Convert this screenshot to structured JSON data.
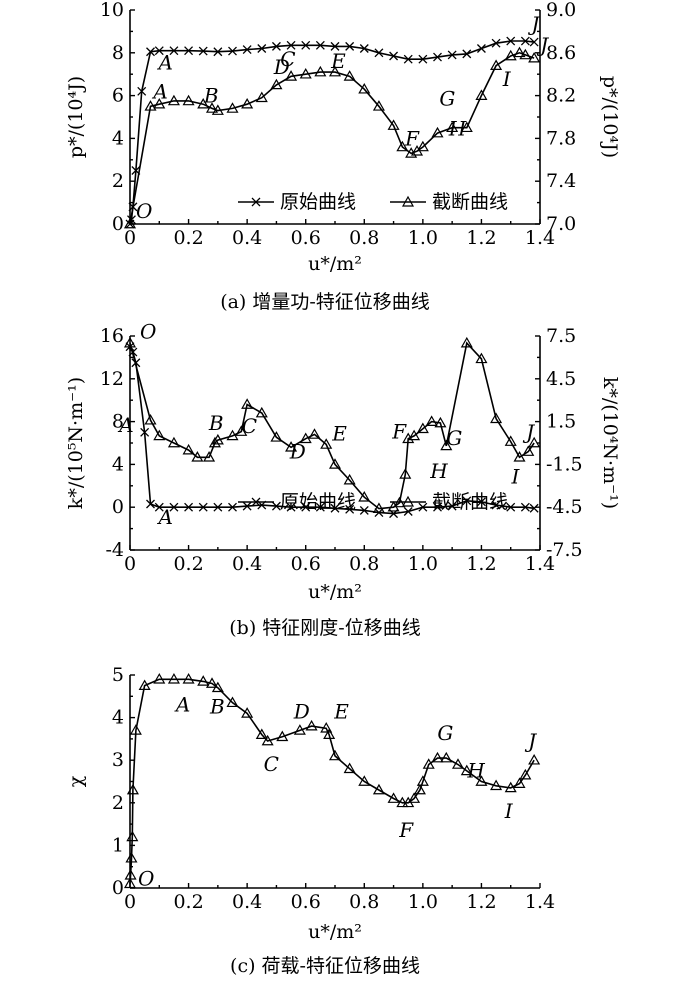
{
  "chart_data": [
    {
      "id": "a",
      "type": "line",
      "title": "",
      "caption": "(a) 增量功-特征位移曲线",
      "xlabel": "u*/m²",
      "ylabel_left": "p*/(10⁴J)",
      "ylabel_right": "p*/(10⁴J)",
      "xlim": [
        0,
        1.4
      ],
      "ylim_left": [
        0,
        10
      ],
      "ylim_right": [
        7.0,
        9.0
      ],
      "xticks": [
        "0",
        "0.2",
        "0.4",
        "0.6",
        "0.8",
        "1.0",
        "1.2",
        "1.4"
      ],
      "yticks_left": [
        "0",
        "2",
        "4",
        "6",
        "8",
        "10"
      ],
      "yticks_right": [
        "7.0",
        "7.4",
        "7.8",
        "8.2",
        "8.6",
        "9.0"
      ],
      "legend": [
        "原始曲线",
        "截断曲线"
      ],
      "legend_placement": "bottom-right",
      "series": [
        {
          "name": "原始曲线",
          "axis": "left",
          "marker": "x",
          "points": [
            [
              0,
              0
            ],
            [
              0.005,
              0.2
            ],
            [
              0.01,
              0.8
            ],
            [
              0.02,
              2.5
            ],
            [
              0.04,
              6.2
            ],
            [
              0.07,
              8.05
            ],
            [
              0.1,
              8.1
            ],
            [
              0.15,
              8.1
            ],
            [
              0.2,
              8.1
            ],
            [
              0.25,
              8.08
            ],
            [
              0.3,
              8.05
            ],
            [
              0.35,
              8.08
            ],
            [
              0.4,
              8.15
            ],
            [
              0.45,
              8.2
            ],
            [
              0.5,
              8.3
            ],
            [
              0.55,
              8.35
            ],
            [
              0.6,
              8.35
            ],
            [
              0.65,
              8.35
            ],
            [
              0.7,
              8.3
            ],
            [
              0.75,
              8.3
            ],
            [
              0.8,
              8.2
            ],
            [
              0.85,
              8.0
            ],
            [
              0.9,
              7.85
            ],
            [
              0.95,
              7.7
            ],
            [
              1.0,
              7.7
            ],
            [
              1.05,
              7.8
            ],
            [
              1.1,
              7.9
            ],
            [
              1.15,
              7.95
            ],
            [
              1.2,
              8.2
            ],
            [
              1.25,
              8.45
            ],
            [
              1.3,
              8.55
            ],
            [
              1.35,
              8.55
            ],
            [
              1.38,
              8.5
            ]
          ]
        },
        {
          "name": "截断曲线",
          "axis": "right",
          "marker": "triangle",
          "points": [
            [
              0,
              7.0
            ],
            [
              0.07,
              8.1
            ],
            [
              0.1,
              8.12
            ],
            [
              0.15,
              8.15
            ],
            [
              0.2,
              8.15
            ],
            [
              0.25,
              8.12
            ],
            [
              0.28,
              8.08
            ],
            [
              0.3,
              8.06
            ],
            [
              0.35,
              8.08
            ],
            [
              0.4,
              8.12
            ],
            [
              0.45,
              8.18
            ],
            [
              0.5,
              8.3
            ],
            [
              0.55,
              8.38
            ],
            [
              0.6,
              8.4
            ],
            [
              0.65,
              8.42
            ],
            [
              0.7,
              8.42
            ],
            [
              0.75,
              8.38
            ],
            [
              0.8,
              8.26
            ],
            [
              0.85,
              8.1
            ],
            [
              0.9,
              7.92
            ],
            [
              0.93,
              7.72
            ],
            [
              0.96,
              7.66
            ],
            [
              0.98,
              7.68
            ],
            [
              1.0,
              7.72
            ],
            [
              1.05,
              7.85
            ],
            [
              1.1,
              7.9
            ],
            [
              1.15,
              7.9
            ],
            [
              1.2,
              8.2
            ],
            [
              1.25,
              8.48
            ],
            [
              1.3,
              8.57
            ],
            [
              1.33,
              8.6
            ],
            [
              1.35,
              8.58
            ],
            [
              1.38,
              8.55
            ]
          ]
        }
      ],
      "annotations": [
        {
          "text": "A",
          "x": 0.07,
          "y": 8.05,
          "axis": "left"
        },
        {
          "text": "A",
          "x": 0.08,
          "y": 8.1,
          "axis": "right"
        },
        {
          "text": "B",
          "x": 0.3,
          "y": 8.06,
          "axis": "right"
        },
        {
          "text": "C",
          "x": 0.52,
          "y": 8.32,
          "axis": "left"
        },
        {
          "text": "D",
          "x": 0.6,
          "y": 8.4,
          "axis": "right"
        },
        {
          "text": "E",
          "x": 0.68,
          "y": 8.4,
          "axis": "left"
        },
        {
          "text": "F",
          "x": 0.96,
          "y": 7.66,
          "axis": "right"
        },
        {
          "text": "G",
          "x": 1.07,
          "y": 7.9,
          "axis": "right"
        },
        {
          "text": "H",
          "x": 1.15,
          "y": 7.9,
          "axis": "right"
        },
        {
          "text": "I",
          "x": 1.3,
          "y": 8.57,
          "axis": "right"
        },
        {
          "text": "J",
          "x": 1.35,
          "y": 8.55,
          "axis": "left"
        },
        {
          "text": "J",
          "x": 1.38,
          "y": 8.55,
          "axis": "right"
        },
        {
          "text": "O",
          "x": 0.0,
          "y": 0.0,
          "axis": "left"
        }
      ]
    },
    {
      "id": "b",
      "type": "line",
      "title": "",
      "caption": "(b) 特征刚度-位移曲线",
      "xlabel": "u*/m²",
      "ylabel_left": "k*/(10⁵N·m⁻¹)",
      "ylabel_right": "k*/(10⁴N·m⁻¹)",
      "xlim": [
        0,
        1.4
      ],
      "ylim_left": [
        -4,
        16
      ],
      "ylim_right": [
        -7.5,
        7.5
      ],
      "xticks": [
        "0",
        "0.2",
        "0.4",
        "0.6",
        "0.8",
        "1.0",
        "1.2",
        "1.4"
      ],
      "yticks_left": [
        "-4",
        "0",
        "4",
        "8",
        "12",
        "16"
      ],
      "yticks_right": [
        "-7.5",
        "-4.5",
        "-1.5",
        "1.5",
        "4.5",
        "7.5"
      ],
      "legend": [
        "原始曲线",
        "截断曲线"
      ],
      "legend_placement": "bottom-right",
      "series": [
        {
          "name": "原始曲线",
          "axis": "left",
          "marker": "x",
          "points": [
            [
              0,
              15
            ],
            [
              0.01,
              14.5
            ],
            [
              0.02,
              13.5
            ],
            [
              0.05,
              7
            ],
            [
              0.07,
              0.3
            ],
            [
              0.1,
              0
            ],
            [
              0.15,
              0
            ],
            [
              0.2,
              0
            ],
            [
              0.25,
              0
            ],
            [
              0.3,
              0
            ],
            [
              0.35,
              0
            ],
            [
              0.4,
              0.1
            ],
            [
              0.45,
              0.2
            ],
            [
              0.5,
              0.1
            ],
            [
              0.55,
              0
            ],
            [
              0.6,
              0
            ],
            [
              0.65,
              0
            ],
            [
              0.7,
              -0.1
            ],
            [
              0.75,
              -0.2
            ],
            [
              0.8,
              -0.3
            ],
            [
              0.85,
              -0.5
            ],
            [
              0.9,
              -0.6
            ],
            [
              0.95,
              -0.4
            ],
            [
              1.0,
              0
            ],
            [
              1.05,
              0
            ],
            [
              1.1,
              0.1
            ],
            [
              1.15,
              0.6
            ],
            [
              1.2,
              0.5
            ],
            [
              1.25,
              0.2
            ],
            [
              1.3,
              0
            ],
            [
              1.35,
              0
            ],
            [
              1.38,
              -0.1
            ]
          ]
        },
        {
          "name": "截断曲线",
          "axis": "right",
          "marker": "triangle",
          "points": [
            [
              0,
              7.0
            ],
            [
              0.07,
              1.6
            ],
            [
              0.1,
              0.5
            ],
            [
              0.15,
              0
            ],
            [
              0.2,
              -0.5
            ],
            [
              0.23,
              -1.0
            ],
            [
              0.27,
              -1.0
            ],
            [
              0.29,
              0
            ],
            [
              0.3,
              0.2
            ],
            [
              0.35,
              0.5
            ],
            [
              0.38,
              0.8
            ],
            [
              0.4,
              2.7
            ],
            [
              0.45,
              2.1
            ],
            [
              0.5,
              0.4
            ],
            [
              0.55,
              -0.3
            ],
            [
              0.6,
              0.3
            ],
            [
              0.63,
              0.6
            ],
            [
              0.67,
              -0.1
            ],
            [
              0.7,
              -1.5
            ],
            [
              0.75,
              -2.6
            ],
            [
              0.8,
              -3.8
            ],
            [
              0.85,
              -4.6
            ],
            [
              0.9,
              -4.5
            ],
            [
              0.92,
              -4.2
            ],
            [
              0.94,
              -2.2
            ],
            [
              0.95,
              0.3
            ],
            [
              0.97,
              0.5
            ],
            [
              1.0,
              1.0
            ],
            [
              1.03,
              1.5
            ],
            [
              1.06,
              1.4
            ],
            [
              1.08,
              -0.2
            ],
            [
              1.15,
              7.0
            ],
            [
              1.2,
              5.9
            ],
            [
              1.25,
              1.7
            ],
            [
              1.3,
              0.1
            ],
            [
              1.33,
              -1.0
            ],
            [
              1.36,
              -0.6
            ],
            [
              1.38,
              0
            ]
          ]
        }
      ],
      "annotations": [
        {
          "text": "O",
          "x": 0.0,
          "y": 15,
          "axis": "left"
        },
        {
          "text": "A",
          "x": 0.07,
          "y": 0.3,
          "axis": "left"
        },
        {
          "text": "A",
          "x": 0.1,
          "y": 0.5,
          "axis": "right"
        },
        {
          "text": "B",
          "x": 0.29,
          "y": 0.2,
          "axis": "right"
        },
        {
          "text": "C",
          "x": 0.45,
          "y": 2.1,
          "axis": "right"
        },
        {
          "text": "D",
          "x": 0.6,
          "y": 0.3,
          "axis": "right"
        },
        {
          "text": "E",
          "x": 0.67,
          "y": -0.1,
          "axis": "right"
        },
        {
          "text": "F",
          "x": 0.95,
          "y": 0.3,
          "axis": "right"
        },
        {
          "text": "G",
          "x": 1.06,
          "y": 1.4,
          "axis": "right"
        },
        {
          "text": "H",
          "x": 1.08,
          "y": -0.2,
          "axis": "right"
        },
        {
          "text": "I",
          "x": 1.33,
          "y": -1.0,
          "axis": "right"
        },
        {
          "text": "J",
          "x": 1.38,
          "y": 0,
          "axis": "right"
        }
      ]
    },
    {
      "id": "c",
      "type": "line",
      "title": "",
      "caption": "(c) 荷载-特征位移曲线",
      "xlabel": "u*/m²",
      "ylabel_left": "χ",
      "xlim": [
        0,
        1.4
      ],
      "ylim_left": [
        0,
        5
      ],
      "xticks": [
        "0",
        "0.2",
        "0.4",
        "0.6",
        "0.8",
        "1.0",
        "1.2",
        "1.4"
      ],
      "yticks_left": [
        "0",
        "1",
        "2",
        "3",
        "4",
        "5"
      ],
      "series": [
        {
          "name": "",
          "axis": "left",
          "marker": "triangle",
          "points": [
            [
              0,
              0.1
            ],
            [
              0.002,
              0.3
            ],
            [
              0.005,
              0.7
            ],
            [
              0.008,
              1.2
            ],
            [
              0.01,
              2.3
            ],
            [
              0.02,
              3.7
            ],
            [
              0.05,
              4.75
            ],
            [
              0.1,
              4.9
            ],
            [
              0.15,
              4.9
            ],
            [
              0.2,
              4.9
            ],
            [
              0.25,
              4.85
            ],
            [
              0.28,
              4.8
            ],
            [
              0.3,
              4.7
            ],
            [
              0.35,
              4.35
            ],
            [
              0.4,
              4.1
            ],
            [
              0.45,
              3.6
            ],
            [
              0.47,
              3.45
            ],
            [
              0.52,
              3.55
            ],
            [
              0.58,
              3.7
            ],
            [
              0.62,
              3.8
            ],
            [
              0.67,
              3.75
            ],
            [
              0.68,
              3.6
            ],
            [
              0.7,
              3.1
            ],
            [
              0.75,
              2.8
            ],
            [
              0.8,
              2.5
            ],
            [
              0.85,
              2.3
            ],
            [
              0.9,
              2.1
            ],
            [
              0.93,
              2.0
            ],
            [
              0.95,
              2.0
            ],
            [
              0.97,
              2.1
            ],
            [
              0.99,
              2.3
            ],
            [
              1.0,
              2.5
            ],
            [
              1.02,
              2.9
            ],
            [
              1.05,
              3.05
            ],
            [
              1.08,
              3.05
            ],
            [
              1.12,
              2.9
            ],
            [
              1.15,
              2.75
            ],
            [
              1.2,
              2.5
            ],
            [
              1.25,
              2.4
            ],
            [
              1.3,
              2.35
            ],
            [
              1.33,
              2.45
            ],
            [
              1.35,
              2.65
            ],
            [
              1.38,
              3.0
            ]
          ]
        }
      ],
      "annotations": [
        {
          "text": "O",
          "x": 0.0,
          "y": 0.1
        },
        {
          "text": "A",
          "x": 0.15,
          "y": 4.9
        },
        {
          "text": "B",
          "x": 0.28,
          "y": 4.8
        },
        {
          "text": "C",
          "x": 0.47,
          "y": 3.45
        },
        {
          "text": "D",
          "x": 0.6,
          "y": 3.75
        },
        {
          "text": "E",
          "x": 0.67,
          "y": 3.75
        },
        {
          "text": "F",
          "x": 0.94,
          "y": 2.0
        },
        {
          "text": "G",
          "x": 1.07,
          "y": 3.05
        },
        {
          "text": "H",
          "x": 1.2,
          "y": 2.5
        },
        {
          "text": "I",
          "x": 1.3,
          "y": 2.35
        },
        {
          "text": "J",
          "x": 1.38,
          "y": 3.0
        }
      ]
    }
  ]
}
